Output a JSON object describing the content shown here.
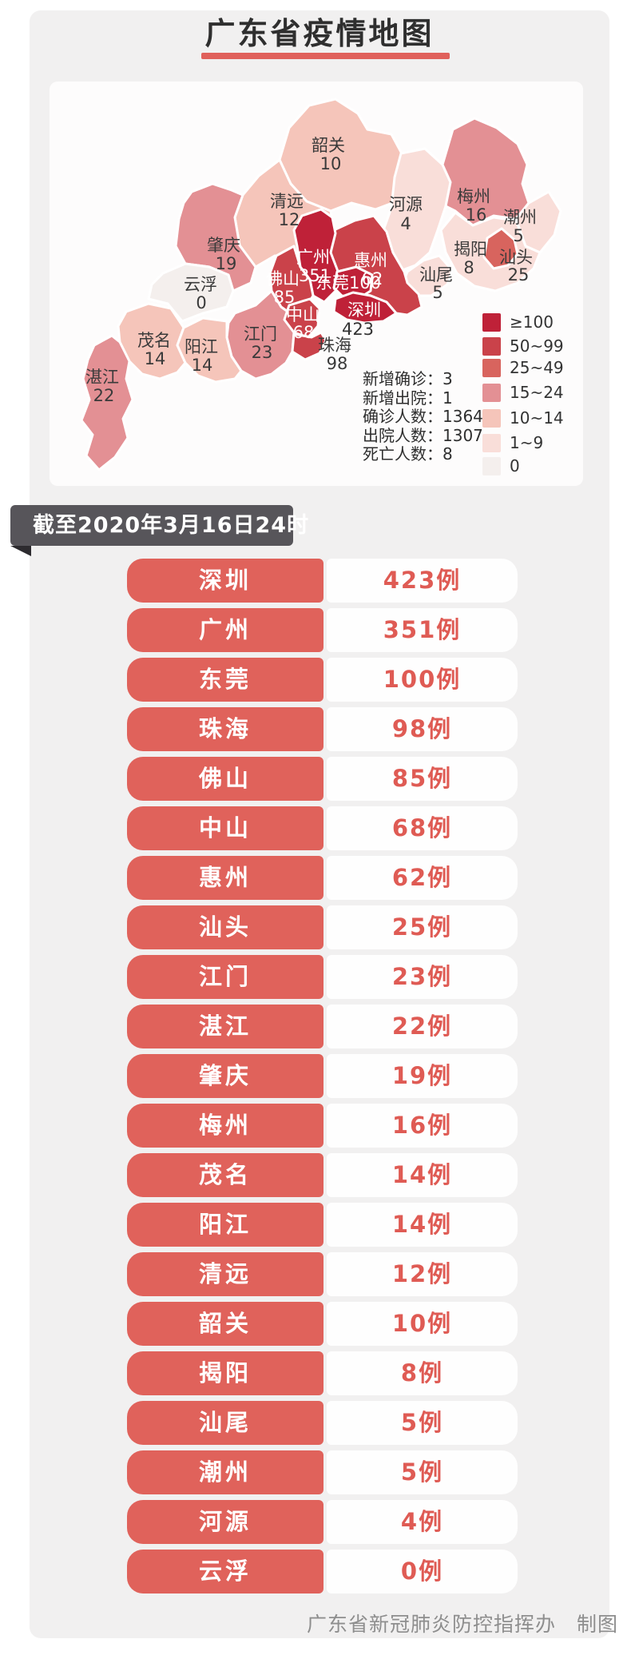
{
  "title": "广东省疫情地图",
  "banner": {
    "text": "截至2020年3月16日24时"
  },
  "footer": {
    "text": "广东省新冠肺炎防控指挥办　制图"
  },
  "map": {
    "legend": [
      {
        "label": "≥100",
        "color": "#bf2138"
      },
      {
        "label": "50~99",
        "color": "#ca424a"
      },
      {
        "label": "25~49",
        "color": "#d8645e"
      },
      {
        "label": "15~24",
        "color": "#e39094"
      },
      {
        "label": "10~14",
        "color": "#f5c5ba"
      },
      {
        "label": "1~9",
        "color": "#f9ded9"
      },
      {
        "label": "0",
        "color": "#f4efed"
      }
    ],
    "stats": [
      "新增确诊：3",
      "新增出院：1",
      "确诊人数：1364",
      "出院人数：1307",
      "死亡人数：8"
    ]
  },
  "list": {
    "unit": "例"
  },
  "cities": [
    {
      "name": "深圳",
      "cases": 423,
      "bucket": 0
    },
    {
      "name": "广州",
      "cases": 351,
      "bucket": 0
    },
    {
      "name": "东莞",
      "cases": 100,
      "bucket": 0
    },
    {
      "name": "珠海",
      "cases": 98,
      "bucket": 1
    },
    {
      "name": "佛山",
      "cases": 85,
      "bucket": 1
    },
    {
      "name": "中山",
      "cases": 68,
      "bucket": 1
    },
    {
      "name": "惠州",
      "cases": 62,
      "bucket": 1
    },
    {
      "name": "汕头",
      "cases": 25,
      "bucket": 2
    },
    {
      "name": "江门",
      "cases": 23,
      "bucket": 3
    },
    {
      "name": "湛江",
      "cases": 22,
      "bucket": 3
    },
    {
      "name": "肇庆",
      "cases": 19,
      "bucket": 3
    },
    {
      "name": "梅州",
      "cases": 16,
      "bucket": 3
    },
    {
      "name": "茂名",
      "cases": 14,
      "bucket": 4
    },
    {
      "name": "阳江",
      "cases": 14,
      "bucket": 4
    },
    {
      "name": "清远",
      "cases": 12,
      "bucket": 4
    },
    {
      "name": "韶关",
      "cases": 10,
      "bucket": 4
    },
    {
      "name": "揭阳",
      "cases": 8,
      "bucket": 5
    },
    {
      "name": "汕尾",
      "cases": 5,
      "bucket": 5
    },
    {
      "name": "潮州",
      "cases": 5,
      "bucket": 5
    },
    {
      "name": "河源",
      "cases": 4,
      "bucket": 5
    },
    {
      "name": "云浮",
      "cases": 0,
      "bucket": 6
    }
  ],
  "chart_data": {
    "type": "table",
    "title": "广东省疫情地图",
    "as_of": "截至2020年3月16日24时",
    "categories": [
      "深圳",
      "广州",
      "东莞",
      "珠海",
      "佛山",
      "中山",
      "惠州",
      "汕头",
      "江门",
      "湛江",
      "肇庆",
      "梅州",
      "茂名",
      "阳江",
      "清远",
      "韶关",
      "揭阳",
      "汕尾",
      "潮州",
      "河源",
      "云浮"
    ],
    "values": [
      423,
      351,
      100,
      98,
      85,
      68,
      62,
      25,
      23,
      22,
      19,
      16,
      14,
      14,
      12,
      10,
      8,
      5,
      5,
      4,
      0
    ],
    "unit": "例",
    "legend_bins": [
      "≥100",
      "50~99",
      "25~49",
      "15~24",
      "10~14",
      "1~9",
      "0"
    ],
    "summary": {
      "新增确诊": 3,
      "新增出院": 1,
      "确诊人数": 1364,
      "出院人数": 1307,
      "死亡人数": 8
    }
  }
}
